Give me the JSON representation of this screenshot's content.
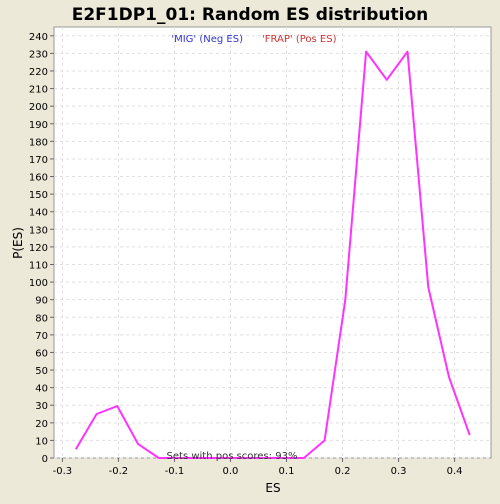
{
  "chart_data": {
    "type": "line",
    "title": "E2F1DP1_01: Random ES distribution",
    "xlabel": "ES",
    "ylabel": "P(ES)",
    "xlim": [
      -0.315,
      0.465
    ],
    "ylim": [
      0,
      245
    ],
    "x_ticks": [
      -0.3,
      -0.2,
      -0.1,
      0.0,
      0.1,
      0.2,
      0.3,
      0.4
    ],
    "x_tick_labels": [
      "-0.3",
      "-0.2",
      "-0.1",
      "0.0",
      "0.1",
      "0.2",
      "0.3",
      "0.4"
    ],
    "y_ticks": [
      0,
      10,
      20,
      30,
      40,
      50,
      60,
      70,
      80,
      90,
      100,
      110,
      120,
      130,
      140,
      150,
      160,
      170,
      180,
      190,
      200,
      210,
      220,
      230,
      240
    ],
    "grid": true,
    "series": [
      {
        "name": "Random ES",
        "color": "#ff33ff",
        "x": [
          -0.276,
          -0.239,
          -0.202,
          -0.165,
          -0.128,
          -0.091,
          -0.054,
          -0.017,
          0.02,
          0.057,
          0.094,
          0.131,
          0.168,
          0.205,
          0.242,
          0.279,
          0.316,
          0.353,
          0.39,
          0.427
        ],
        "y": [
          5,
          25,
          29.5,
          8,
          0,
          0,
          0,
          0,
          0,
          0,
          0,
          0,
          10,
          90,
          231,
          215,
          231,
          97,
          46,
          13
        ]
      }
    ],
    "annotations": {
      "neg_label": "'MIG' (Neg ES)",
      "pos_label": "'FRAP' (Pos ES)",
      "neg_color": "#3333cc",
      "pos_color": "#cc3333",
      "footer": "Sets with pos scores: 93%"
    }
  }
}
